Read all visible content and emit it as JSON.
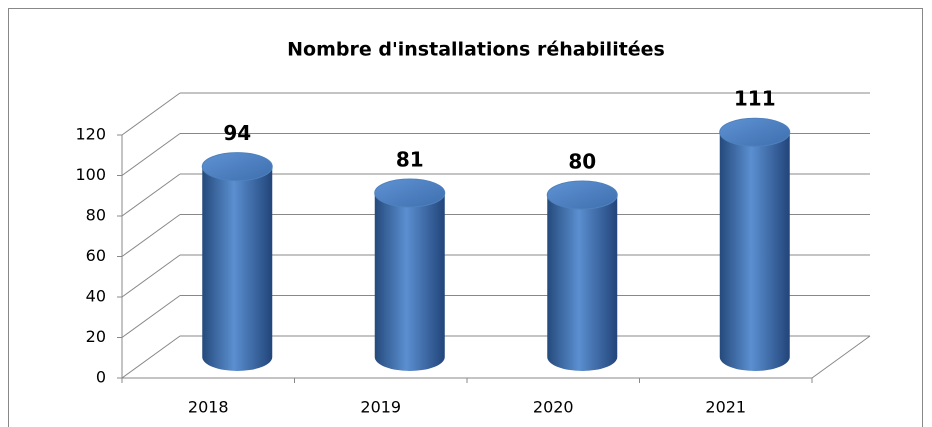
{
  "chart_data": {
    "type": "bar",
    "title": "Nombre d'installations réhabilitées",
    "categories": [
      "2018",
      "2019",
      "2020",
      "2021"
    ],
    "values": [
      94,
      81,
      80,
      111
    ],
    "color": "#4f81bd",
    "ylim": [
      0,
      120
    ],
    "yticks": [
      0,
      20,
      40,
      60,
      80,
      100,
      120
    ],
    "grid": true
  }
}
